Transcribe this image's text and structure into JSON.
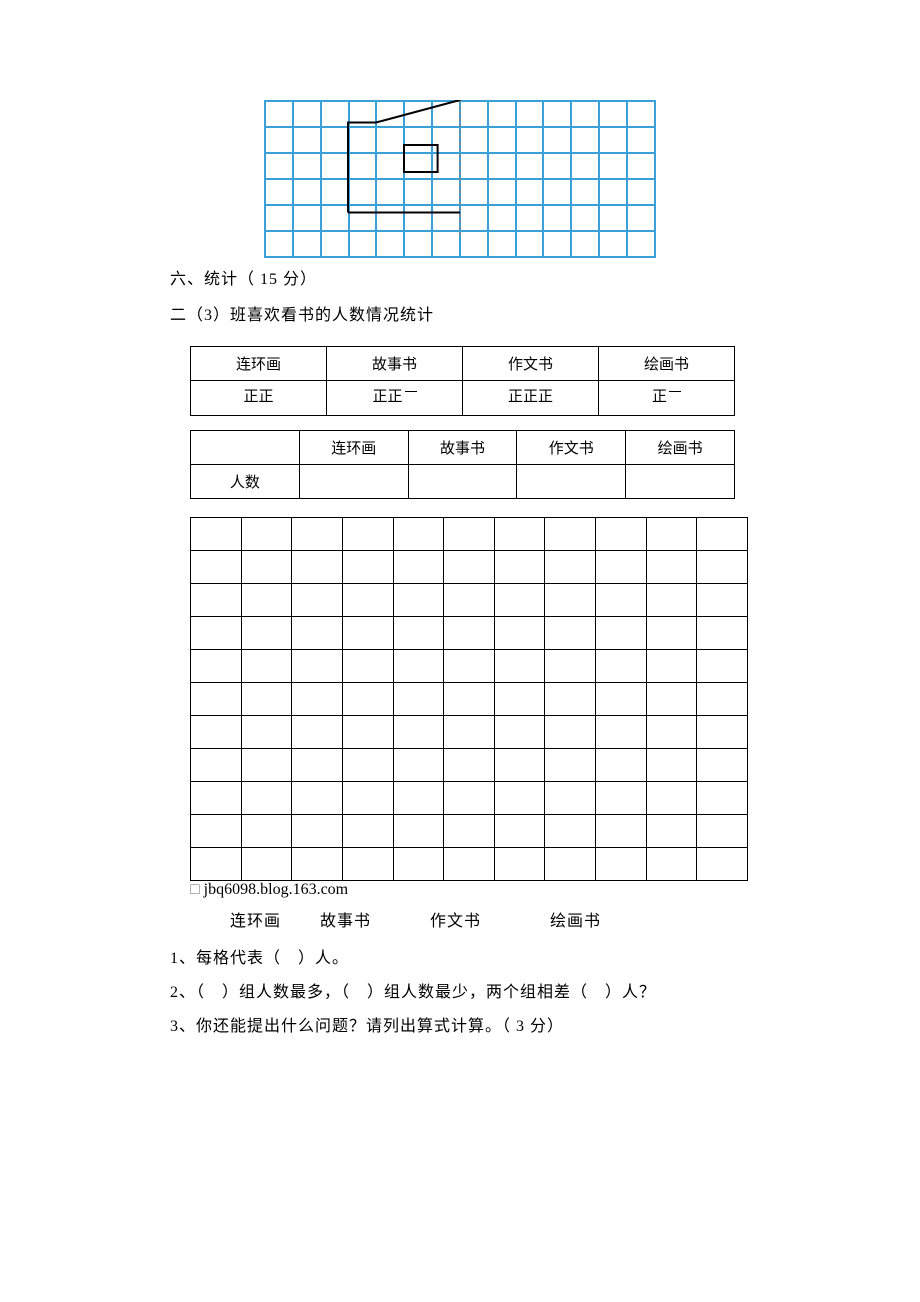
{
  "symmetry_grid": {
    "cols": 14,
    "rows": 6,
    "cell_border_color": "#3aa0d8",
    "mirror_line_color": "#808080",
    "mirror_line_col": 7,
    "shape_stroke": "#000000",
    "shape_stroke_width": 2
  },
  "section_title": "六、统计（ 15 分）",
  "section_subtitle": "二（3）班喜欢看书的人数情况统计",
  "tally_table": {
    "headers": [
      "连环画",
      "故事书",
      "作文书",
      "绘画书"
    ],
    "tally_marks": [
      {
        "full": 2,
        "dash": false
      },
      {
        "full": 2,
        "dash": true
      },
      {
        "full": 3,
        "dash": false
      },
      {
        "full": 1,
        "dash": true
      }
    ],
    "tally_char": "正"
  },
  "count_table": {
    "row_label": "人数",
    "headers": [
      "连环画",
      "故事书",
      "作文书",
      "绘画书"
    ],
    "values": [
      "",
      "",
      "",
      ""
    ]
  },
  "bar_chart_grid": {
    "rows": 11,
    "cols": 11,
    "border_color": "#000000",
    "watermark": "jbq6098.blog.163.com"
  },
  "axis_labels": [
    "连环画",
    "故事书",
    "作文书",
    "绘画书"
  ],
  "questions": {
    "q1": "1、每格代表（　）人。",
    "q2": "2、（　）组人数最多，（　）组人数最少，两个组相差（　）人？",
    "q3": "3、你还能提出什么问题？请列出算式计算。（ 3 分）"
  }
}
